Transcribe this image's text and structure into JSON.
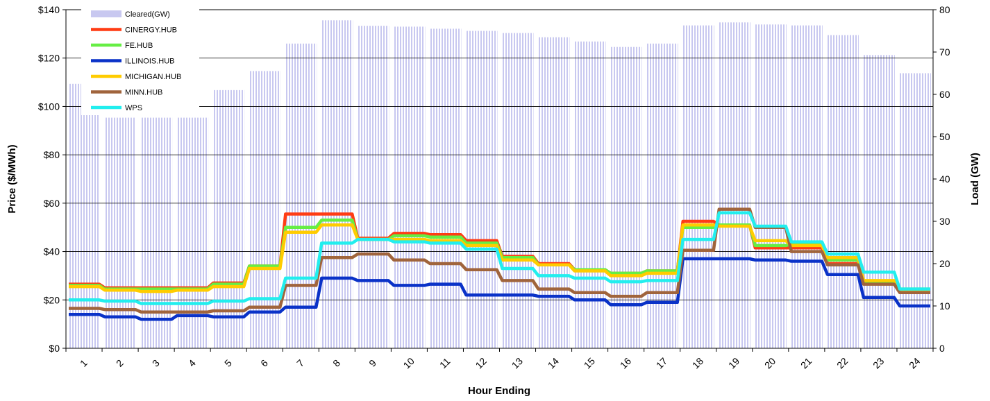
{
  "chart_data": {
    "type": "line",
    "xlabel": "Hour Ending",
    "ylabel": "Price ($/MWh)",
    "y2label": "Load (GW)",
    "categories": [
      "1",
      "2",
      "3",
      "4",
      "5",
      "6",
      "7",
      "8",
      "9",
      "10",
      "11",
      "12",
      "13",
      "14",
      "15",
      "16",
      "17",
      "18",
      "19",
      "20",
      "21",
      "22",
      "23",
      "24"
    ],
    "ylim": [
      0,
      140
    ],
    "yticks": [
      "$0",
      "$20",
      "$40",
      "$60",
      "$80",
      "$100",
      "$120",
      "$140"
    ],
    "y2lim": [
      0,
      80
    ],
    "y2ticks": [
      "0",
      "10",
      "20",
      "30",
      "40",
      "50",
      "60",
      "70",
      "80"
    ],
    "grid": true,
    "legend_position": "top-left",
    "bar_series": {
      "name": "Cleared(GW)",
      "color": "#c8c8f0",
      "values": [
        62.5,
        54.5,
        54.5,
        54.5,
        61,
        65.5,
        72,
        77.5,
        76.2,
        76,
        75.5,
        75,
        74.5,
        73.5,
        72.5,
        71.2,
        72,
        76.3,
        77,
        76.5,
        76.3,
        74,
        69.3,
        65
      ]
    },
    "series": [
      {
        "name": "CINERGY.HUB",
        "color": "#ff3c14",
        "values": [
          26.5,
          25,
          25,
          25,
          27,
          34,
          55.5,
          55.5,
          45.5,
          47.5,
          47,
          44.5,
          38,
          35,
          32.5,
          31,
          32,
          52.5,
          51,
          41.5,
          41.5,
          35,
          27.5,
          24
        ]
      },
      {
        "name": "FE.HUB",
        "color": "#66ee44",
        "values": [
          26,
          24.5,
          24.5,
          24.5,
          26.5,
          34,
          50,
          53,
          45,
          46.5,
          46,
          43.5,
          37.5,
          34.5,
          32.5,
          31,
          32,
          50,
          51,
          42.5,
          43,
          36.5,
          27.5,
          24.5
        ]
      },
      {
        "name": "ILLINOIS.HUB",
        "color": "#0a32c8",
        "values": [
          14,
          13,
          12,
          13.5,
          13,
          15,
          17,
          29,
          28,
          26,
          26.5,
          22,
          22,
          21.5,
          20,
          18,
          19,
          37,
          37,
          36.5,
          36,
          30.5,
          21,
          17.5
        ]
      },
      {
        "name": "MICHIGAN.HUB",
        "color": "#ffcc00",
        "values": [
          25.5,
          24,
          23.5,
          24,
          25.5,
          33,
          48,
          51,
          45,
          45,
          44.5,
          42.5,
          36.5,
          34.5,
          32,
          30,
          31,
          51,
          50.5,
          44.5,
          42.5,
          37.5,
          28,
          24
        ]
      },
      {
        "name": "MINN.HUB",
        "color": "#a0643c",
        "values": [
          16.5,
          16,
          15,
          15,
          15.5,
          17,
          26,
          37.5,
          39,
          36.5,
          35,
          32.5,
          28,
          24.5,
          23,
          21.5,
          23,
          40.5,
          57.5,
          50,
          40,
          34.5,
          26.5,
          23
        ]
      },
      {
        "name": "WPS",
        "color": "#22eeee",
        "values": [
          20,
          19.5,
          18.5,
          18.5,
          19.5,
          20.5,
          29,
          43.5,
          45,
          44,
          43.5,
          41,
          33,
          30,
          29,
          27.5,
          28,
          45,
          56,
          50.5,
          44,
          39,
          31.5,
          24.5
        ]
      }
    ]
  }
}
